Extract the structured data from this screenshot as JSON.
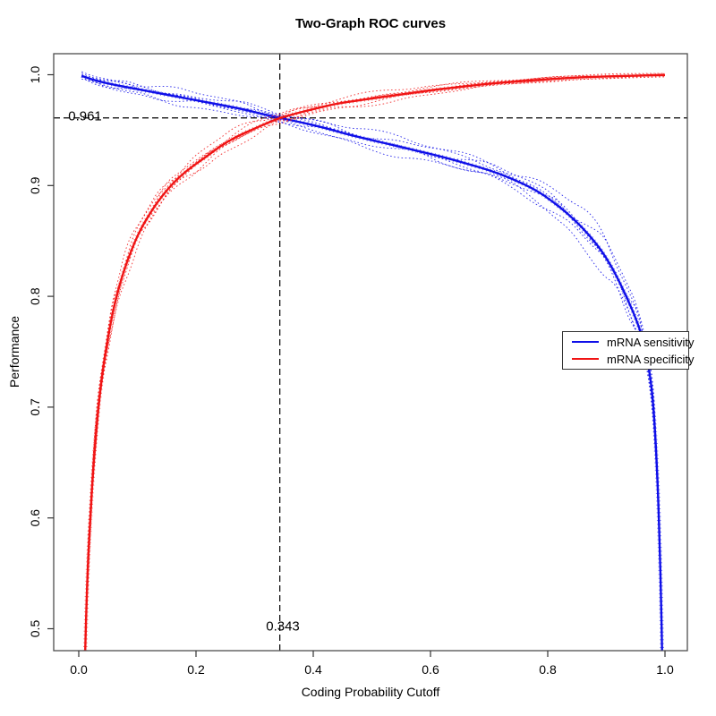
{
  "chart_data": {
    "type": "line",
    "title": "Two-Graph ROC curves",
    "xlabel": "Coding Probability Cutoff",
    "ylabel": "Performance",
    "xlim": [
      0.0,
      1.0
    ],
    "ylim": [
      0.48,
      1.0
    ],
    "grid": false,
    "legend_position": "right-middle",
    "x_axis": {
      "tick_values": [
        0.0,
        0.2,
        0.4,
        0.6,
        0.8,
        1.0
      ],
      "tick_labels": [
        "0.0",
        "0.2",
        "0.4",
        "0.6",
        "0.8",
        "1.0"
      ]
    },
    "y_axis": {
      "tick_values": [
        0.5,
        0.6,
        0.7,
        0.8,
        0.9,
        1.0
      ],
      "tick_labels": [
        "0.5",
        "0.6",
        "0.7",
        "0.8",
        "0.9",
        "1.0"
      ]
    },
    "threshold": {
      "x": 0.343,
      "y": 0.961,
      "x_label": "0.343",
      "y_label": "0.961"
    },
    "series": [
      {
        "name": "mRNA sensitivity",
        "color": "#0f0fe8",
        "style": "solid-with-dotted-replicates",
        "x": [
          0.005,
          0.02,
          0.05,
          0.08,
          0.11,
          0.14,
          0.17,
          0.2,
          0.24,
          0.28,
          0.31,
          0.343,
          0.38,
          0.42,
          0.46,
          0.5,
          0.54,
          0.58,
          0.62,
          0.66,
          0.7,
          0.74,
          0.78,
          0.81,
          0.84,
          0.87,
          0.895,
          0.915,
          0.935,
          0.952,
          0.963,
          0.972,
          0.979,
          0.984,
          0.988,
          0.991,
          0.9935,
          0.995
        ],
        "y": [
          0.999,
          0.996,
          0.992,
          0.989,
          0.986,
          0.983,
          0.98,
          0.977,
          0.973,
          0.969,
          0.965,
          0.961,
          0.957,
          0.952,
          0.946,
          0.941,
          0.936,
          0.931,
          0.926,
          0.92,
          0.914,
          0.906,
          0.896,
          0.885,
          0.872,
          0.856,
          0.839,
          0.821,
          0.799,
          0.778,
          0.76,
          0.738,
          0.71,
          0.67,
          0.625,
          0.575,
          0.525,
          0.48
        ],
        "ci": [
          0.003,
          0.004,
          0.004,
          0.005,
          0.005,
          0.005,
          0.005,
          0.005,
          0.005,
          0.005,
          0.005,
          0.005,
          0.005,
          0.006,
          0.006,
          0.006,
          0.006,
          0.006,
          0.007,
          0.007,
          0.008,
          0.008,
          0.009,
          0.01,
          0.011,
          0.012,
          0.013,
          0.014,
          0.014,
          0.013,
          0.012,
          0.011,
          0.01,
          0.009,
          0.008,
          0.007,
          0.006,
          0.005
        ]
      },
      {
        "name": "mRNA specificity",
        "color": "#f01414",
        "style": "solid-with-dotted-replicates",
        "x": [
          0.011,
          0.013,
          0.016,
          0.02,
          0.024,
          0.029,
          0.035,
          0.042,
          0.05,
          0.058,
          0.068,
          0.078,
          0.09,
          0.103,
          0.118,
          0.134,
          0.152,
          0.172,
          0.193,
          0.215,
          0.24,
          0.268,
          0.298,
          0.32,
          0.343,
          0.37,
          0.4,
          0.44,
          0.48,
          0.52,
          0.56,
          0.6,
          0.65,
          0.7,
          0.75,
          0.8,
          0.85,
          0.9,
          0.95,
          1.0
        ],
        "y": [
          0.48,
          0.52,
          0.563,
          0.603,
          0.64,
          0.675,
          0.708,
          0.737,
          0.763,
          0.786,
          0.807,
          0.825,
          0.842,
          0.858,
          0.872,
          0.885,
          0.897,
          0.908,
          0.917,
          0.925,
          0.935,
          0.944,
          0.951,
          0.956,
          0.961,
          0.965,
          0.969,
          0.974,
          0.977,
          0.98,
          0.983,
          0.986,
          0.989,
          0.992,
          0.994,
          0.996,
          0.9975,
          0.9985,
          0.9992,
          0.9997
        ],
        "ci": [
          0.01,
          0.011,
          0.012,
          0.012,
          0.012,
          0.012,
          0.011,
          0.011,
          0.01,
          0.01,
          0.009,
          0.009,
          0.008,
          0.008,
          0.008,
          0.007,
          0.007,
          0.007,
          0.006,
          0.006,
          0.006,
          0.006,
          0.005,
          0.005,
          0.005,
          0.005,
          0.004,
          0.004,
          0.004,
          0.004,
          0.003,
          0.003,
          0.003,
          0.003,
          0.002,
          0.002,
          0.002,
          0.002,
          0.001,
          0.001
        ]
      }
    ],
    "annotation_colors": {
      "crosshair": "#000000",
      "box": "#4d4d4d",
      "text": "#000000"
    }
  }
}
